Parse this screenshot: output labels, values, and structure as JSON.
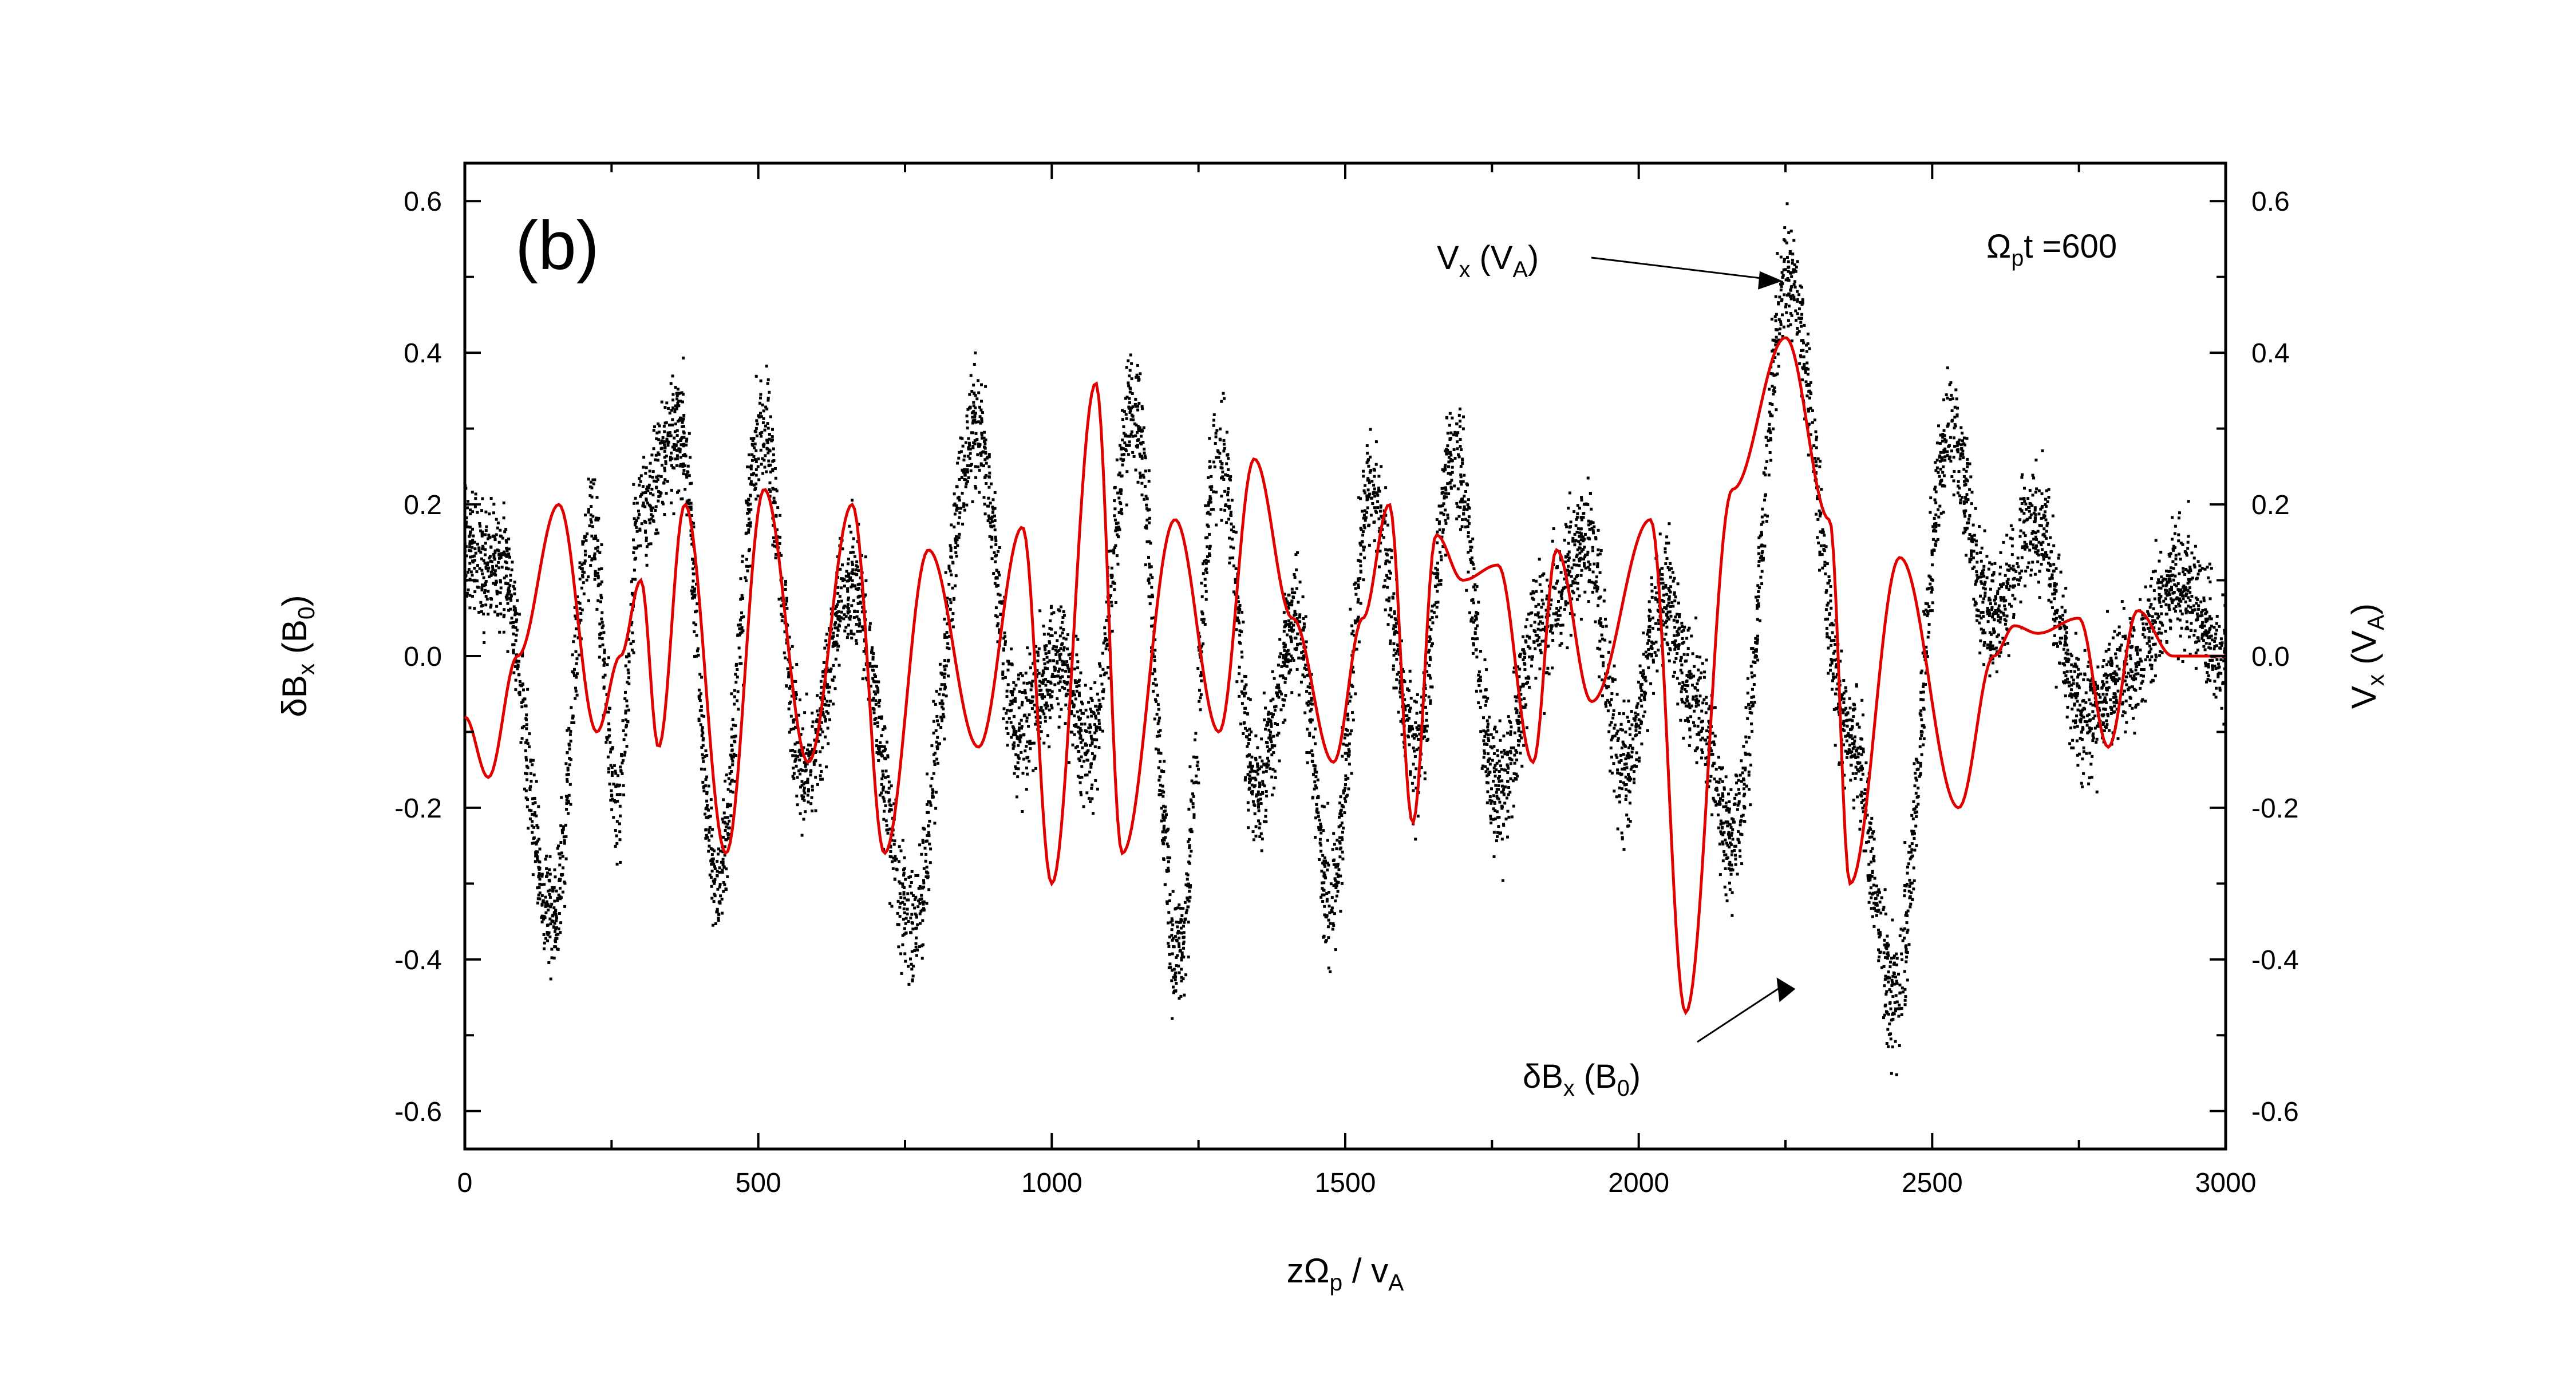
{
  "chart_data": {
    "type": "scatter",
    "panel_label": "(b)",
    "annotation_time": {
      "symbol": "Ω",
      "sub": "p",
      "rest": "t =600"
    },
    "xlabel": {
      "main": "zΩ",
      "sub": "p",
      "tail": " / v",
      "sub2": "A"
    },
    "ylabel_left": {
      "main": "δB",
      "sub": "x",
      "mid": " (B",
      "sub2": "0",
      "tail": ")"
    },
    "ylabel_right": {
      "main": "V",
      "sub": "x",
      "mid": " (V",
      "sub2": "A",
      "tail": ")"
    },
    "xlim": [
      0,
      3000
    ],
    "ylim": [
      -0.65,
      0.65
    ],
    "xticks": [
      "0",
      "500",
      "1000",
      "1500",
      "2000",
      "2500",
      "3000"
    ],
    "yticks": [
      "-0.6",
      "-0.4",
      "-0.2",
      "0.0",
      "0.2",
      "0.4",
      "0.6"
    ],
    "series": [
      {
        "name": "δB",
        "label_sub": "x",
        "label_unit": "B",
        "label_unit_sub": "0",
        "color": "#e00000",
        "style": "line",
        "x": [
          0,
          40,
          90,
          160,
          225,
          265,
          300,
          330,
          375,
          445,
          510,
          585,
          660,
          715,
          790,
          875,
          950,
          1000,
          1075,
          1120,
          1210,
          1285,
          1345,
          1410,
          1480,
          1530,
          1575,
          1615,
          1655,
          1700,
          1760,
          1820,
          1860,
          1920,
          2020,
          2080,
          2160,
          2250,
          2325,
          2360,
          2445,
          2545,
          2605,
          2640,
          2680,
          2750,
          2800,
          2850,
          2910,
          3000
        ],
        "y": [
          -0.08,
          -0.16,
          0.0,
          0.2,
          -0.1,
          0.0,
          0.1,
          -0.12,
          0.2,
          -0.26,
          0.22,
          -0.14,
          0.2,
          -0.26,
          0.14,
          -0.12,
          0.17,
          -0.3,
          0.36,
          -0.26,
          0.18,
          -0.1,
          0.26,
          0.05,
          -0.14,
          0.05,
          0.2,
          -0.22,
          0.16,
          0.1,
          0.12,
          -0.14,
          0.14,
          -0.06,
          0.18,
          -0.47,
          0.22,
          0.42,
          0.18,
          -0.3,
          0.13,
          -0.2,
          0.0,
          0.04,
          0.03,
          0.05,
          -0.12,
          0.06,
          0.0,
          0.0
        ]
      },
      {
        "name": "V",
        "label_sub": "x",
        "label_unit": "V",
        "label_unit_sub": "A",
        "color": "#000000",
        "style": "scatter",
        "x": [
          0,
          60,
          150,
          215,
          260,
          300,
          365,
          430,
          505,
          580,
          660,
          760,
          870,
          945,
          1010,
          1065,
          1140,
          1215,
          1285,
          1350,
          1415,
          1475,
          1545,
          1620,
          1685,
          1760,
          1835,
          1910,
          1975,
          2040,
          2095,
          2160,
          2255,
          2360,
          2435,
          2530,
          2600,
          2675,
          2760,
          2830,
          2920,
          3000
        ],
        "y": [
          0.15,
          0.12,
          -0.35,
          0.18,
          -0.2,
          0.2,
          0.3,
          -0.3,
          0.3,
          -0.15,
          0.1,
          -0.35,
          0.3,
          -0.1,
          0.0,
          -0.12,
          0.33,
          -0.4,
          0.28,
          -0.18,
          0.05,
          -0.32,
          0.22,
          -0.12,
          0.27,
          -0.18,
          0.05,
          0.15,
          -0.15,
          0.08,
          -0.05,
          -0.25,
          0.5,
          -0.1,
          -0.45,
          0.3,
          0.05,
          0.18,
          -0.08,
          -0.02,
          0.1,
          0.0
        ],
        "spread": 0.08
      }
    ],
    "annotations": [
      {
        "target": "V",
        "text_main": "V",
        "text_sub": "x",
        "text_mid": " (V",
        "text_sub2": "A",
        "text_tail": ")",
        "arrow_to": [
          2250,
          0.5
        ]
      },
      {
        "target": "δB",
        "text_main": "δB",
        "text_sub": "x",
        "text_mid": " (B",
        "text_sub2": "0",
        "text_tail": ")",
        "arrow_to": [
          2250,
          -0.42
        ]
      }
    ]
  }
}
